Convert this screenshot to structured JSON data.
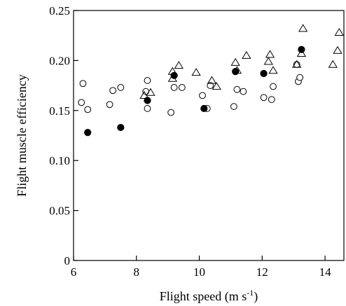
{
  "chart_data": {
    "type": "scatter",
    "title": "",
    "xlabel": "Flight speed (m s",
    "xlabel_sup": "-1",
    "xlabel_close": ")",
    "ylabel": "Flight muscle efficiency",
    "xlim": [
      6,
      14.6
    ],
    "ylim": [
      0,
      0.25
    ],
    "xticks": [
      6,
      8,
      10,
      12,
      14
    ],
    "xtick_labels": [
      "6",
      "8",
      "10",
      "12",
      "14"
    ],
    "yticks": [
      0,
      0.05,
      0.1,
      0.15,
      0.2,
      0.25
    ],
    "ytick_labels": [
      "0",
      "0.05",
      "0.10",
      "0.15",
      "0.20",
      "0.25"
    ],
    "grid": false,
    "series": [
      {
        "marker": "open-circle",
        "points": [
          [
            6.25,
            0.158
          ],
          [
            6.3,
            0.177
          ],
          [
            6.45,
            0.151
          ],
          [
            7.15,
            0.156
          ],
          [
            7.25,
            0.17
          ],
          [
            7.5,
            0.173
          ],
          [
            8.3,
            0.169
          ],
          [
            8.35,
            0.18
          ],
          [
            8.35,
            0.152
          ],
          [
            9.1,
            0.148
          ],
          [
            9.2,
            0.173
          ],
          [
            9.45,
            0.173
          ],
          [
            10.1,
            0.165
          ],
          [
            10.25,
            0.152
          ],
          [
            10.35,
            0.175
          ],
          [
            11.1,
            0.154
          ],
          [
            11.2,
            0.171
          ],
          [
            11.4,
            0.169
          ],
          [
            12.05,
            0.163
          ],
          [
            12.3,
            0.161
          ],
          [
            12.35,
            0.174
          ],
          [
            13.15,
            0.179
          ],
          [
            13.2,
            0.183
          ],
          [
            13.1,
            0.196
          ]
        ]
      },
      {
        "marker": "filled-circle",
        "points": [
          [
            6.45,
            0.128
          ],
          [
            7.5,
            0.133
          ],
          [
            8.35,
            0.16
          ],
          [
            9.2,
            0.185
          ],
          [
            10.15,
            0.152
          ],
          [
            11.15,
            0.189
          ],
          [
            12.05,
            0.187
          ],
          [
            13.25,
            0.211
          ]
        ]
      },
      {
        "marker": "open-triangle",
        "points": [
          [
            8.25,
            0.165
          ],
          [
            8.45,
            0.168
          ],
          [
            9.15,
            0.182
          ],
          [
            9.35,
            0.195
          ],
          [
            9.15,
            0.189
          ],
          [
            9.9,
            0.188
          ],
          [
            10.4,
            0.18
          ],
          [
            10.55,
            0.174
          ],
          [
            11.2,
            0.19
          ],
          [
            11.15,
            0.198
          ],
          [
            11.5,
            0.205
          ],
          [
            12.2,
            0.199
          ],
          [
            12.25,
            0.206
          ],
          [
            12.35,
            0.19
          ],
          [
            13.1,
            0.196
          ],
          [
            13.25,
            0.207
          ],
          [
            13.3,
            0.232
          ],
          [
            14.25,
            0.196
          ],
          [
            14.4,
            0.21
          ],
          [
            14.45,
            0.228
          ]
        ]
      }
    ]
  }
}
